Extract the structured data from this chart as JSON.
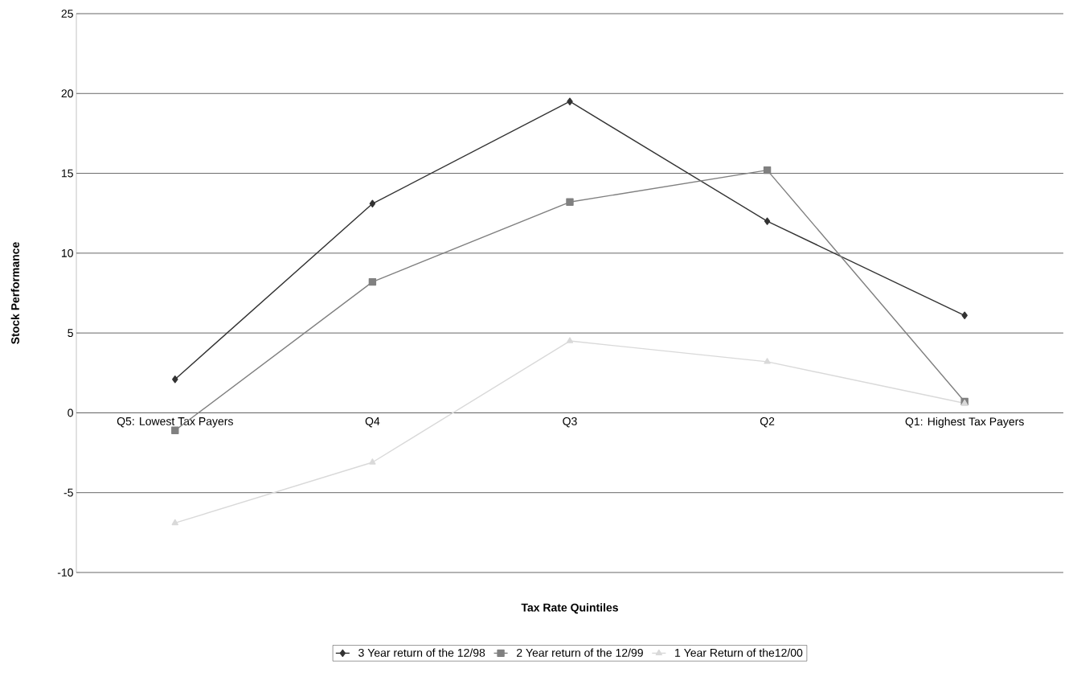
{
  "chart_data": {
    "type": "line",
    "xlabel": "Tax Rate Quintiles",
    "ylabel": "Stock Performance",
    "categories": [
      "Q5: Lowest Tax Payers",
      "Q4",
      "Q3",
      "Q2",
      "Q1: Highest Tax Payers"
    ],
    "series": [
      {
        "name": "3 Year return of the 12/98",
        "color": "#333333",
        "marker": "diamond",
        "values": [
          2.1,
          13.1,
          19.5,
          12.0,
          6.1
        ]
      },
      {
        "name": "2 Year return of the 12/99",
        "color": "#808080",
        "marker": "square",
        "values": [
          -1.1,
          8.2,
          13.2,
          15.2,
          0.7
        ]
      },
      {
        "name": "1 Year Return of the12/00",
        "color": "#d9d9d9",
        "marker": "triangle",
        "values": [
          -6.9,
          -3.1,
          4.5,
          3.2,
          0.6
        ]
      }
    ],
    "ylim": [
      -10,
      25
    ],
    "yticks": [
      -10,
      -5,
      0,
      5,
      10,
      15,
      20,
      25
    ],
    "grid": "y",
    "legend": "bottom",
    "line_style": "solid"
  }
}
